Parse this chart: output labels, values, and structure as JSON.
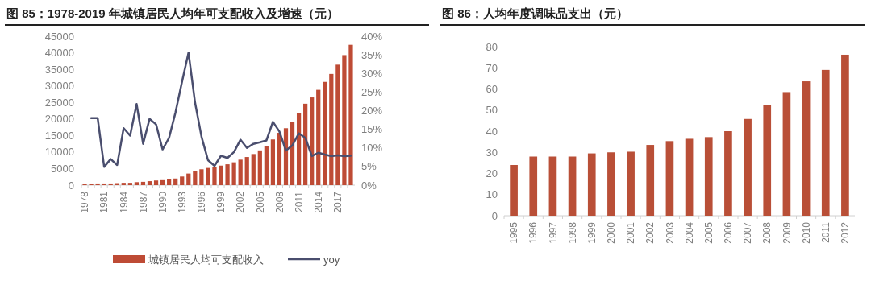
{
  "chart_data": [
    {
      "type": "bar",
      "title": "图 85：1978-2019 年城镇居民人均年可支配收入及增速（元）",
      "categories": [
        "1978",
        null,
        null,
        "1981",
        null,
        null,
        "1984",
        null,
        null,
        "1987",
        null,
        null,
        "1990",
        null,
        null,
        "1993",
        null,
        null,
        "1996",
        null,
        null,
        "1999",
        null,
        null,
        "2002",
        null,
        null,
        "2005",
        null,
        null,
        "2008",
        null,
        null,
        "2011",
        null,
        null,
        "2014",
        null,
        null,
        "2017",
        null,
        null
      ],
      "series": [
        {
          "name": "城镇居民人均可支配收入",
          "color": "#be4b35",
          "values": [
            300,
            400,
            500,
            500,
            500,
            600,
            700,
            700,
            900,
            1000,
            1200,
            1400,
            1500,
            1700,
            2000,
            2600,
            3500,
            4300,
            4800,
            5200,
            5400,
            5900,
            6300,
            6900,
            7700,
            8500,
            9400,
            10500,
            11800,
            13800,
            15800,
            17200,
            19100,
            21800,
            24600,
            26500,
            28800,
            31200,
            33600,
            36400,
            39300,
            42400
          ]
        },
        {
          "name": "yoy",
          "type": "line",
          "axis": "y2",
          "color": "#4a4e6e",
          "values": [
            null,
            18,
            18,
            4.9,
            7,
            5.4,
            15.3,
            13.3,
            21.8,
            11.1,
            17.8,
            16.3,
            9.6,
            12.7,
            19.6,
            27.8,
            35.6,
            22.2,
            13,
            6.7,
            5.2,
            7.9,
            7.3,
            8.9,
            12.2,
            10,
            11.1,
            11.5,
            12,
            17,
            14.4,
            9.3,
            10.7,
            13.9,
            12.7,
            7.8,
            8.7,
            8.2,
            7.8,
            8,
            7.8,
            7.9
          ]
        }
      ],
      "ylim": [
        0,
        45000
      ],
      "yticks": [
        0,
        5000,
        10000,
        15000,
        20000,
        25000,
        30000,
        35000,
        40000,
        45000
      ],
      "y2lim": [
        0,
        40
      ],
      "y2ticks": [
        {
          "value": 0,
          "label": "0%"
        },
        {
          "value": 5,
          "label": "5%"
        },
        {
          "value": 10,
          "label": "10%"
        },
        {
          "value": 15,
          "label": "15%"
        },
        {
          "value": 20,
          "label": "20%"
        },
        {
          "value": 25,
          "label": "25%"
        },
        {
          "value": 30,
          "label": "30%"
        },
        {
          "value": 35,
          "label": "35%"
        },
        {
          "value": 40,
          "label": "40%"
        }
      ],
      "legend": "bottom",
      "grid": false
    },
    {
      "type": "bar",
      "title": "图 86：人均年度调味品支出（元）",
      "categories": [
        "1995",
        "1996",
        "1997",
        "1998",
        "1999",
        "2000",
        "2001",
        "2002",
        "2003",
        "2004",
        "2005",
        "2006",
        "2007",
        "2008",
        "2009",
        "2010",
        "2011",
        "2012"
      ],
      "series": [
        {
          "color": "#b94f37",
          "values": [
            24,
            28,
            28,
            28,
            29.5,
            30,
            30.3,
            33.5,
            35.3,
            36.4,
            37.2,
            40,
            45.8,
            52.3,
            58.5,
            63.6,
            69,
            76.2
          ]
        }
      ],
      "ylim": [
        0,
        80
      ],
      "yticks": [
        0,
        10,
        20,
        30,
        40,
        50,
        60,
        70,
        80
      ],
      "grid": false
    }
  ]
}
